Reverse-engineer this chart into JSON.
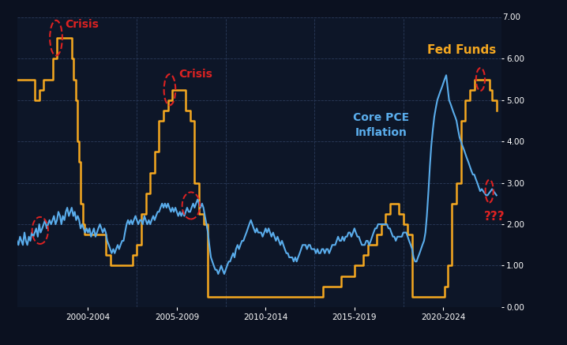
{
  "background_color": "#0b1120",
  "plot_bg_color": "#0d1628",
  "grid_color": "#2a3a5a",
  "ylim": [
    0,
    7.0
  ],
  "yticks": [
    0.0,
    1.0,
    2.0,
    3.0,
    4.0,
    5.0,
    6.0
  ],
  "ytick_labels": [
    "0.00",
    "1.00",
    "2.00",
    "3.00",
    "4.00",
    "5.00",
    "6.00"
  ],
  "top_label": "7.00",
  "fed_funds_color": "#f5a820",
  "core_pce_color": "#5aadec",
  "annotation_color": "#dd2222",
  "fed_funds_label": "Fed Funds",
  "core_pce_label": "Core PCE\nInflation",
  "crisis_label": "Crisis",
  "qqq_label": "???",
  "x_tick_labels": [
    "2000-2004",
    "2005-2009",
    "2010-2014",
    "2015-2019",
    "2020-2024"
  ],
  "x_tick_positions": [
    2002.0,
    2007.0,
    2012.0,
    2017.0,
    2022.0
  ],
  "xlim": [
    1998.0,
    2025.3
  ],
  "vlines": [
    2004.75,
    2009.75,
    2014.75,
    2019.75
  ],
  "fed_funds_data": [
    [
      1998.0,
      5.5
    ],
    [
      1998.5,
      5.5
    ],
    [
      1999.0,
      5.0
    ],
    [
      1999.25,
      5.25
    ],
    [
      1999.5,
      5.5
    ],
    [
      1999.75,
      5.5
    ],
    [
      2000.0,
      6.0
    ],
    [
      2000.25,
      6.5
    ],
    [
      2000.5,
      6.5
    ],
    [
      2000.75,
      6.5
    ],
    [
      2001.0,
      6.5
    ],
    [
      2001.1,
      6.0
    ],
    [
      2001.2,
      5.5
    ],
    [
      2001.3,
      5.0
    ],
    [
      2001.4,
      4.0
    ],
    [
      2001.5,
      3.5
    ],
    [
      2001.6,
      2.5
    ],
    [
      2001.7,
      2.0
    ],
    [
      2001.8,
      1.75
    ],
    [
      2002.0,
      1.75
    ],
    [
      2002.5,
      1.75
    ],
    [
      2003.0,
      1.25
    ],
    [
      2003.25,
      1.0
    ],
    [
      2003.5,
      1.0
    ],
    [
      2004.0,
      1.0
    ],
    [
      2004.25,
      1.0
    ],
    [
      2004.5,
      1.25
    ],
    [
      2004.75,
      1.5
    ],
    [
      2005.0,
      2.25
    ],
    [
      2005.25,
      2.75
    ],
    [
      2005.5,
      3.25
    ],
    [
      2005.75,
      3.75
    ],
    [
      2006.0,
      4.5
    ],
    [
      2006.25,
      4.75
    ],
    [
      2006.5,
      5.0
    ],
    [
      2006.75,
      5.25
    ],
    [
      2007.0,
      5.25
    ],
    [
      2007.25,
      5.25
    ],
    [
      2007.5,
      4.75
    ],
    [
      2007.75,
      4.5
    ],
    [
      2008.0,
      3.0
    ],
    [
      2008.25,
      2.25
    ],
    [
      2008.5,
      2.0
    ],
    [
      2008.75,
      0.25
    ],
    [
      2009.0,
      0.25
    ],
    [
      2009.5,
      0.25
    ],
    [
      2010.0,
      0.25
    ],
    [
      2011.0,
      0.25
    ],
    [
      2012.0,
      0.25
    ],
    [
      2013.0,
      0.25
    ],
    [
      2014.0,
      0.25
    ],
    [
      2015.0,
      0.25
    ],
    [
      2015.25,
      0.5
    ],
    [
      2015.5,
      0.5
    ],
    [
      2016.0,
      0.5
    ],
    [
      2016.25,
      0.75
    ],
    [
      2016.5,
      0.75
    ],
    [
      2017.0,
      1.0
    ],
    [
      2017.25,
      1.0
    ],
    [
      2017.5,
      1.25
    ],
    [
      2017.75,
      1.5
    ],
    [
      2018.0,
      1.5
    ],
    [
      2018.25,
      1.75
    ],
    [
      2018.5,
      2.0
    ],
    [
      2018.75,
      2.25
    ],
    [
      2019.0,
      2.5
    ],
    [
      2019.1,
      2.5
    ],
    [
      2019.25,
      2.5
    ],
    [
      2019.5,
      2.25
    ],
    [
      2019.75,
      2.0
    ],
    [
      2020.0,
      1.75
    ],
    [
      2020.1,
      1.75
    ],
    [
      2020.25,
      0.25
    ],
    [
      2020.5,
      0.25
    ],
    [
      2021.0,
      0.25
    ],
    [
      2021.5,
      0.25
    ],
    [
      2022.0,
      0.25
    ],
    [
      2022.1,
      0.5
    ],
    [
      2022.25,
      1.0
    ],
    [
      2022.5,
      2.5
    ],
    [
      2022.75,
      3.0
    ],
    [
      2023.0,
      4.5
    ],
    [
      2023.25,
      5.0
    ],
    [
      2023.5,
      5.25
    ],
    [
      2023.75,
      5.5
    ],
    [
      2024.0,
      5.5
    ],
    [
      2024.25,
      5.5
    ],
    [
      2024.5,
      5.5
    ],
    [
      2024.6,
      5.25
    ],
    [
      2024.75,
      5.0
    ],
    [
      2025.0,
      4.75
    ]
  ],
  "core_pce_data": [
    [
      1998.0,
      1.6
    ],
    [
      1998.08,
      1.5
    ],
    [
      1998.17,
      1.7
    ],
    [
      1998.25,
      1.6
    ],
    [
      1998.33,
      1.5
    ],
    [
      1998.42,
      1.8
    ],
    [
      1998.5,
      1.6
    ],
    [
      1998.58,
      1.5
    ],
    [
      1998.67,
      1.7
    ],
    [
      1998.75,
      1.6
    ],
    [
      1998.83,
      1.8
    ],
    [
      1998.92,
      1.7
    ],
    [
      1999.0,
      1.8
    ],
    [
      1999.08,
      1.9
    ],
    [
      1999.17,
      1.7
    ],
    [
      1999.25,
      2.0
    ],
    [
      1999.33,
      1.8
    ],
    [
      1999.42,
      1.9
    ],
    [
      1999.5,
      2.0
    ],
    [
      1999.58,
      2.1
    ],
    [
      1999.67,
      1.9
    ],
    [
      1999.75,
      2.0
    ],
    [
      1999.83,
      2.1
    ],
    [
      1999.92,
      2.0
    ],
    [
      2000.0,
      2.1
    ],
    [
      2000.08,
      2.2
    ],
    [
      2000.17,
      2.0
    ],
    [
      2000.25,
      2.1
    ],
    [
      2000.33,
      2.3
    ],
    [
      2000.42,
      2.2
    ],
    [
      2000.5,
      2.0
    ],
    [
      2000.58,
      2.2
    ],
    [
      2000.67,
      2.1
    ],
    [
      2000.75,
      2.3
    ],
    [
      2000.83,
      2.4
    ],
    [
      2000.92,
      2.2
    ],
    [
      2001.0,
      2.3
    ],
    [
      2001.08,
      2.4
    ],
    [
      2001.17,
      2.2
    ],
    [
      2001.25,
      2.3
    ],
    [
      2001.33,
      2.1
    ],
    [
      2001.42,
      2.2
    ],
    [
      2001.5,
      2.1
    ],
    [
      2001.58,
      1.9
    ],
    [
      2001.67,
      2.0
    ],
    [
      2001.75,
      1.9
    ],
    [
      2001.83,
      1.8
    ],
    [
      2001.92,
      1.9
    ],
    [
      2002.0,
      1.8
    ],
    [
      2002.08,
      1.9
    ],
    [
      2002.17,
      1.7
    ],
    [
      2002.25,
      1.8
    ],
    [
      2002.33,
      1.9
    ],
    [
      2002.42,
      1.7
    ],
    [
      2002.5,
      1.8
    ],
    [
      2002.58,
      1.9
    ],
    [
      2002.67,
      2.0
    ],
    [
      2002.75,
      1.9
    ],
    [
      2002.83,
      1.8
    ],
    [
      2002.92,
      1.9
    ],
    [
      2003.0,
      1.8
    ],
    [
      2003.08,
      1.6
    ],
    [
      2003.17,
      1.5
    ],
    [
      2003.25,
      1.4
    ],
    [
      2003.33,
      1.3
    ],
    [
      2003.42,
      1.4
    ],
    [
      2003.5,
      1.3
    ],
    [
      2003.58,
      1.4
    ],
    [
      2003.67,
      1.5
    ],
    [
      2003.75,
      1.4
    ],
    [
      2003.83,
      1.5
    ],
    [
      2003.92,
      1.6
    ],
    [
      2004.0,
      1.6
    ],
    [
      2004.08,
      1.8
    ],
    [
      2004.17,
      2.0
    ],
    [
      2004.25,
      2.1
    ],
    [
      2004.33,
      2.0
    ],
    [
      2004.42,
      2.1
    ],
    [
      2004.5,
      2.0
    ],
    [
      2004.58,
      2.1
    ],
    [
      2004.67,
      2.2
    ],
    [
      2004.75,
      2.1
    ],
    [
      2004.83,
      2.0
    ],
    [
      2004.92,
      2.1
    ],
    [
      2005.0,
      2.1
    ],
    [
      2005.08,
      2.0
    ],
    [
      2005.17,
      2.2
    ],
    [
      2005.25,
      2.1
    ],
    [
      2005.33,
      2.0
    ],
    [
      2005.42,
      2.1
    ],
    [
      2005.5,
      2.0
    ],
    [
      2005.58,
      2.1
    ],
    [
      2005.67,
      2.2
    ],
    [
      2005.75,
      2.1
    ],
    [
      2005.83,
      2.2
    ],
    [
      2005.92,
      2.3
    ],
    [
      2006.0,
      2.3
    ],
    [
      2006.08,
      2.4
    ],
    [
      2006.17,
      2.5
    ],
    [
      2006.25,
      2.4
    ],
    [
      2006.33,
      2.5
    ],
    [
      2006.42,
      2.4
    ],
    [
      2006.5,
      2.5
    ],
    [
      2006.58,
      2.4
    ],
    [
      2006.67,
      2.3
    ],
    [
      2006.75,
      2.4
    ],
    [
      2006.83,
      2.3
    ],
    [
      2006.92,
      2.4
    ],
    [
      2007.0,
      2.3
    ],
    [
      2007.08,
      2.2
    ],
    [
      2007.17,
      2.3
    ],
    [
      2007.25,
      2.2
    ],
    [
      2007.33,
      2.3
    ],
    [
      2007.42,
      2.2
    ],
    [
      2007.5,
      2.3
    ],
    [
      2007.58,
      2.4
    ],
    [
      2007.67,
      2.3
    ],
    [
      2007.75,
      2.3
    ],
    [
      2007.83,
      2.4
    ],
    [
      2007.92,
      2.5
    ],
    [
      2008.0,
      2.4
    ],
    [
      2008.08,
      2.5
    ],
    [
      2008.17,
      2.6
    ],
    [
      2008.25,
      2.5
    ],
    [
      2008.33,
      2.4
    ],
    [
      2008.42,
      2.5
    ],
    [
      2008.5,
      2.4
    ],
    [
      2008.58,
      2.2
    ],
    [
      2008.67,
      2.0
    ],
    [
      2008.75,
      1.8
    ],
    [
      2008.83,
      1.5
    ],
    [
      2008.92,
      1.2
    ],
    [
      2009.0,
      1.1
    ],
    [
      2009.08,
      1.0
    ],
    [
      2009.17,
      0.9
    ],
    [
      2009.25,
      0.9
    ],
    [
      2009.33,
      0.8
    ],
    [
      2009.42,
      0.9
    ],
    [
      2009.5,
      1.0
    ],
    [
      2009.58,
      0.9
    ],
    [
      2009.67,
      0.8
    ],
    [
      2009.75,
      0.9
    ],
    [
      2009.83,
      1.0
    ],
    [
      2009.92,
      1.1
    ],
    [
      2010.0,
      1.1
    ],
    [
      2010.08,
      1.2
    ],
    [
      2010.17,
      1.3
    ],
    [
      2010.25,
      1.2
    ],
    [
      2010.33,
      1.4
    ],
    [
      2010.42,
      1.5
    ],
    [
      2010.5,
      1.4
    ],
    [
      2010.58,
      1.5
    ],
    [
      2010.67,
      1.6
    ],
    [
      2010.75,
      1.6
    ],
    [
      2010.83,
      1.7
    ],
    [
      2010.92,
      1.8
    ],
    [
      2011.0,
      1.9
    ],
    [
      2011.08,
      2.0
    ],
    [
      2011.17,
      2.1
    ],
    [
      2011.25,
      2.0
    ],
    [
      2011.33,
      1.9
    ],
    [
      2011.42,
      1.8
    ],
    [
      2011.5,
      1.9
    ],
    [
      2011.58,
      1.8
    ],
    [
      2011.67,
      1.8
    ],
    [
      2011.75,
      1.8
    ],
    [
      2011.83,
      1.7
    ],
    [
      2011.92,
      1.8
    ],
    [
      2012.0,
      1.9
    ],
    [
      2012.08,
      1.8
    ],
    [
      2012.17,
      1.9
    ],
    [
      2012.25,
      1.8
    ],
    [
      2012.33,
      1.7
    ],
    [
      2012.42,
      1.8
    ],
    [
      2012.5,
      1.7
    ],
    [
      2012.58,
      1.6
    ],
    [
      2012.67,
      1.7
    ],
    [
      2012.75,
      1.6
    ],
    [
      2012.83,
      1.5
    ],
    [
      2012.92,
      1.6
    ],
    [
      2013.0,
      1.5
    ],
    [
      2013.08,
      1.4
    ],
    [
      2013.17,
      1.3
    ],
    [
      2013.25,
      1.3
    ],
    [
      2013.33,
      1.2
    ],
    [
      2013.42,
      1.2
    ],
    [
      2013.5,
      1.2
    ],
    [
      2013.58,
      1.1
    ],
    [
      2013.67,
      1.2
    ],
    [
      2013.75,
      1.1
    ],
    [
      2013.83,
      1.2
    ],
    [
      2013.92,
      1.3
    ],
    [
      2014.0,
      1.4
    ],
    [
      2014.08,
      1.5
    ],
    [
      2014.17,
      1.5
    ],
    [
      2014.25,
      1.5
    ],
    [
      2014.33,
      1.4
    ],
    [
      2014.42,
      1.5
    ],
    [
      2014.5,
      1.5
    ],
    [
      2014.58,
      1.4
    ],
    [
      2014.67,
      1.4
    ],
    [
      2014.75,
      1.4
    ],
    [
      2014.83,
      1.3
    ],
    [
      2014.92,
      1.4
    ],
    [
      2015.0,
      1.3
    ],
    [
      2015.08,
      1.3
    ],
    [
      2015.17,
      1.4
    ],
    [
      2015.25,
      1.4
    ],
    [
      2015.33,
      1.3
    ],
    [
      2015.42,
      1.4
    ],
    [
      2015.5,
      1.4
    ],
    [
      2015.58,
      1.3
    ],
    [
      2015.67,
      1.4
    ],
    [
      2015.75,
      1.5
    ],
    [
      2015.83,
      1.5
    ],
    [
      2015.92,
      1.5
    ],
    [
      2016.0,
      1.6
    ],
    [
      2016.08,
      1.7
    ],
    [
      2016.17,
      1.6
    ],
    [
      2016.25,
      1.6
    ],
    [
      2016.33,
      1.7
    ],
    [
      2016.42,
      1.6
    ],
    [
      2016.5,
      1.7
    ],
    [
      2016.58,
      1.7
    ],
    [
      2016.67,
      1.8
    ],
    [
      2016.75,
      1.8
    ],
    [
      2016.83,
      1.7
    ],
    [
      2016.92,
      1.8
    ],
    [
      2017.0,
      1.9
    ],
    [
      2017.08,
      1.8
    ],
    [
      2017.17,
      1.7
    ],
    [
      2017.25,
      1.7
    ],
    [
      2017.33,
      1.6
    ],
    [
      2017.42,
      1.5
    ],
    [
      2017.5,
      1.5
    ],
    [
      2017.58,
      1.5
    ],
    [
      2017.67,
      1.6
    ],
    [
      2017.75,
      1.6
    ],
    [
      2017.83,
      1.5
    ],
    [
      2017.92,
      1.6
    ],
    [
      2018.0,
      1.7
    ],
    [
      2018.08,
      1.8
    ],
    [
      2018.17,
      1.9
    ],
    [
      2018.25,
      1.9
    ],
    [
      2018.33,
      2.0
    ],
    [
      2018.42,
      2.0
    ],
    [
      2018.5,
      2.0
    ],
    [
      2018.58,
      2.0
    ],
    [
      2018.67,
      2.0
    ],
    [
      2018.75,
      2.0
    ],
    [
      2018.83,
      2.0
    ],
    [
      2018.92,
      1.9
    ],
    [
      2019.0,
      1.9
    ],
    [
      2019.08,
      1.8
    ],
    [
      2019.17,
      1.7
    ],
    [
      2019.25,
      1.7
    ],
    [
      2019.33,
      1.6
    ],
    [
      2019.42,
      1.7
    ],
    [
      2019.5,
      1.7
    ],
    [
      2019.58,
      1.7
    ],
    [
      2019.67,
      1.7
    ],
    [
      2019.75,
      1.8
    ],
    [
      2019.83,
      1.8
    ],
    [
      2019.92,
      1.8
    ],
    [
      2020.0,
      1.7
    ],
    [
      2020.08,
      1.6
    ],
    [
      2020.17,
      1.5
    ],
    [
      2020.25,
      1.4
    ],
    [
      2020.33,
      1.2
    ],
    [
      2020.42,
      1.1
    ],
    [
      2020.5,
      1.1
    ],
    [
      2020.58,
      1.2
    ],
    [
      2020.67,
      1.3
    ],
    [
      2020.75,
      1.4
    ],
    [
      2020.83,
      1.5
    ],
    [
      2020.92,
      1.6
    ],
    [
      2021.0,
      1.8
    ],
    [
      2021.08,
      2.2
    ],
    [
      2021.17,
      2.8
    ],
    [
      2021.25,
      3.4
    ],
    [
      2021.33,
      3.9
    ],
    [
      2021.42,
      4.3
    ],
    [
      2021.5,
      4.6
    ],
    [
      2021.58,
      4.8
    ],
    [
      2021.67,
      5.0
    ],
    [
      2021.75,
      5.1
    ],
    [
      2021.83,
      5.2
    ],
    [
      2021.92,
      5.3
    ],
    [
      2022.0,
      5.4
    ],
    [
      2022.08,
      5.5
    ],
    [
      2022.17,
      5.6
    ],
    [
      2022.25,
      5.3
    ],
    [
      2022.33,
      5.0
    ],
    [
      2022.42,
      4.9
    ],
    [
      2022.5,
      4.8
    ],
    [
      2022.58,
      4.7
    ],
    [
      2022.67,
      4.6
    ],
    [
      2022.75,
      4.5
    ],
    [
      2022.83,
      4.3
    ],
    [
      2022.92,
      4.1
    ],
    [
      2023.0,
      4.0
    ],
    [
      2023.08,
      3.9
    ],
    [
      2023.17,
      3.8
    ],
    [
      2023.25,
      3.7
    ],
    [
      2023.33,
      3.6
    ],
    [
      2023.42,
      3.5
    ],
    [
      2023.5,
      3.4
    ],
    [
      2023.58,
      3.3
    ],
    [
      2023.67,
      3.2
    ],
    [
      2023.75,
      3.2
    ],
    [
      2023.83,
      3.1
    ],
    [
      2023.92,
      3.0
    ],
    [
      2024.0,
      2.9
    ],
    [
      2024.08,
      2.8
    ],
    [
      2024.17,
      2.85
    ],
    [
      2024.25,
      2.8
    ],
    [
      2024.33,
      2.75
    ],
    [
      2024.42,
      2.7
    ],
    [
      2024.5,
      2.7
    ],
    [
      2024.58,
      2.75
    ],
    [
      2024.67,
      2.8
    ],
    [
      2024.75,
      2.85
    ],
    [
      2024.83,
      2.8
    ],
    [
      2024.92,
      2.75
    ],
    [
      2025.0,
      2.7
    ]
  ]
}
